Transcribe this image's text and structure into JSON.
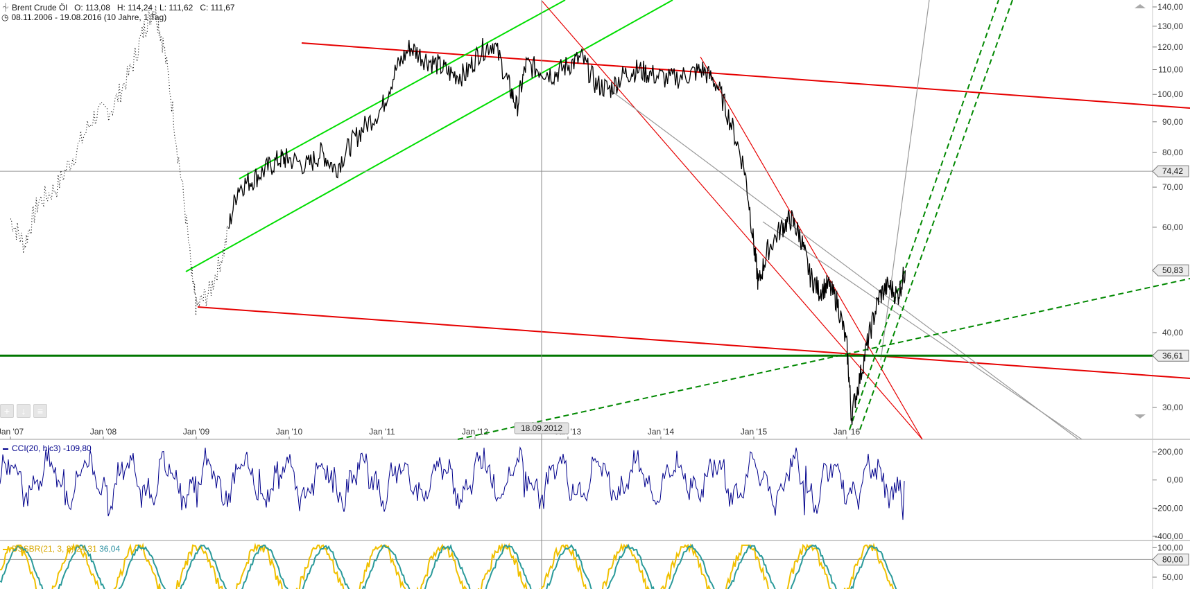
{
  "header": {
    "instrument": "Brent Crude Öl",
    "open": "O: 113,08",
    "high": "H: 114,24",
    "low": "L: 111,62",
    "close": "C: 111,67",
    "range": "08.11.2006 - 19.08.2016 (10 Jahre, 1 Tag)"
  },
  "indicators": {
    "cci": {
      "name": "CCI(20, hlc3)",
      "value": "-109,80",
      "color": "#00008b"
    },
    "dss": {
      "name": "DSSBR(21, 3, 8)",
      "value1": "24,31",
      "value2": "36,04",
      "color1": "#f0c000",
      "color2": "#2a9a9a"
    }
  },
  "crosshair": {
    "date_label": "18.09.2012"
  },
  "price_markers": [
    {
      "value": "74,42",
      "y": 74.42,
      "style": "gray"
    },
    {
      "value": "50,83",
      "y": 50.83,
      "style": "arrow"
    },
    {
      "value": "36,61",
      "y": 36.61,
      "style": "arrow-dark"
    }
  ],
  "colors": {
    "trend_red": "#e60000",
    "trend_green": "#00dd00",
    "support_green": "#007700",
    "dashed_green": "#008800",
    "price": "#000000",
    "grid": "#888888"
  },
  "chart_data": {
    "type": "line",
    "scale": "log",
    "ylim": [
      26,
      142
    ],
    "y_ticks": [
      "140,00",
      "130,00",
      "120,00",
      "110,00",
      "100,00",
      "90,00",
      "80,00",
      "70,00",
      "60,00",
      "40,00",
      "30,00"
    ],
    "y_tick_values": [
      140,
      130,
      120,
      110,
      100,
      90,
      80,
      70,
      60,
      40,
      30
    ],
    "x_ticks": [
      "Jan '07",
      "Jan '08",
      "Jan '09",
      "Jan '10",
      "Jan '11",
      "Jan '12",
      "Jan '13",
      "Jan '14",
      "Jan '15",
      "Jan '16"
    ],
    "x_tick_values": [
      2007.0,
      2008.0,
      2009.0,
      2010.0,
      2011.0,
      2012.0,
      2013.0,
      2014.0,
      2015.0,
      2016.0
    ],
    "xlim": [
      2006.96,
      2019.6
    ],
    "series": [
      {
        "values_x": [
          2007.0,
          2007.15,
          2007.3,
          2007.5,
          2007.7,
          2007.9,
          2008.1,
          2008.3,
          2008.45,
          2008.55,
          2008.65,
          2008.8,
          2008.95,
          2009.0,
          2009.15,
          2009.3,
          2009.45,
          2009.6,
          2009.75,
          2009.9,
          2010.0,
          2010.2,
          2010.35,
          2010.5,
          2010.65,
          2010.8,
          2011.0,
          2011.15,
          2011.3,
          2011.45,
          2011.6,
          2011.75,
          2011.9,
          2012.05,
          2012.2,
          2012.35,
          2012.45,
          2012.55,
          2012.7,
          2012.85,
          2013.0,
          2013.15,
          2013.3,
          2013.45,
          2013.6,
          2013.75,
          2013.9,
          2014.1,
          2014.3,
          2014.45,
          2014.6,
          2014.75,
          2014.9,
          2015.0,
          2015.05,
          2015.15,
          2015.3,
          2015.4,
          2015.5,
          2015.6,
          2015.7,
          2015.8,
          2015.9,
          2016.0,
          2016.05,
          2016.15,
          2016.25,
          2016.35,
          2016.45,
          2016.55,
          2016.63
        ],
        "values": [
          62,
          56,
          66,
          70,
          80,
          92,
          95,
          110,
          130,
          140,
          120,
          80,
          50,
          44,
          47,
          55,
          70,
          72,
          75,
          78,
          78,
          76,
          80,
          75,
          82,
          88,
          95,
          110,
          120,
          115,
          112,
          108,
          108,
          118,
          122,
          105,
          95,
          112,
          110,
          108,
          112,
          115,
          104,
          102,
          108,
          110,
          108,
          106,
          108,
          110,
          104,
          90,
          75,
          56,
          48,
          55,
          60,
          62,
          58,
          50,
          47,
          48,
          45,
          38,
          29,
          34,
          40,
          46,
          48,
          46,
          50.83
        ]
      }
    ],
    "horizontal_levels": [
      74.42,
      36.61
    ],
    "cci_ylim": [
      -420,
      230
    ],
    "cci_ticks": [
      "200,00",
      "0,00",
      "-200,00",
      "-400,00"
    ],
    "cci_tick_values": [
      200,
      0,
      -200,
      -400
    ],
    "dss_ylim": [
      30,
      105
    ],
    "dss_ticks": [
      "100,00",
      "50,00"
    ],
    "dss_tick_values": [
      100,
      50
    ],
    "dss_level": "80,00"
  }
}
